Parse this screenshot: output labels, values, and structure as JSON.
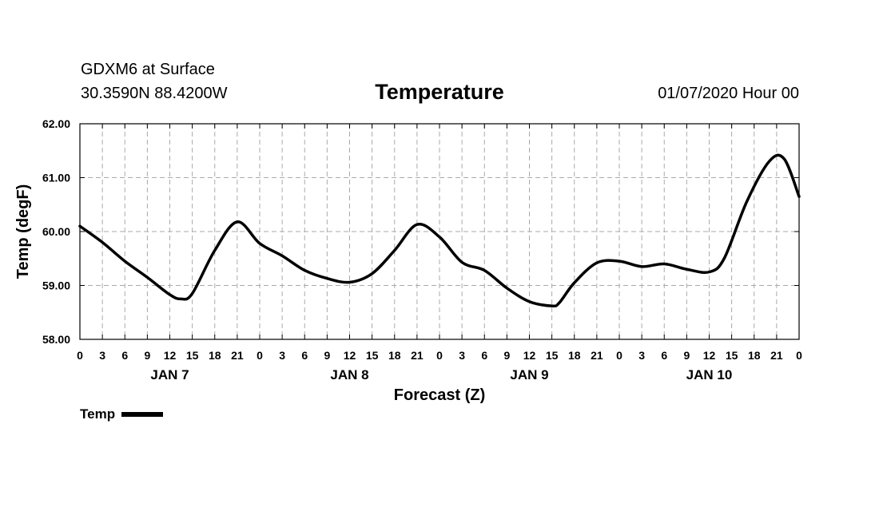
{
  "header": {
    "model": "GDXM6 at Surface",
    "location": "30.3590N 88.4200W",
    "title": "Temperature",
    "datetime": "01/07/2020 Hour 00"
  },
  "legend": {
    "label": "Temp"
  },
  "colors": {
    "line": "#000000",
    "grid": "#aaaaaa",
    "background": "#ffffff"
  },
  "chart_data": {
    "type": "line",
    "title": "Temperature",
    "xlabel": "Forecast (Z)",
    "ylabel": "Temp (degF)",
    "ylim": [
      58.0,
      62.0
    ],
    "y_ticks": [
      "58.00",
      "59.00",
      "60.00",
      "61.00",
      "62.00"
    ],
    "x_range_hours": [
      0,
      96
    ],
    "x_tick_labels": [
      "0",
      "3",
      "6",
      "9",
      "12",
      "15",
      "18",
      "21",
      "0",
      "3",
      "6",
      "9",
      "12",
      "15",
      "18",
      "21",
      "0",
      "3",
      "6",
      "9",
      "12",
      "15",
      "18",
      "21",
      "0",
      "3",
      "6",
      "9",
      "12",
      "15",
      "18",
      "21",
      "0"
    ],
    "day_labels": [
      {
        "label": "JAN 7",
        "hour": 12
      },
      {
        "label": "JAN 8",
        "hour": 36
      },
      {
        "label": "JAN 9",
        "hour": 60
      },
      {
        "label": "JAN 10",
        "hour": 84
      }
    ],
    "grid": true,
    "legend_position": "bottom-left",
    "series": [
      {
        "name": "Temp",
        "x": [
          0,
          3,
          6,
          9,
          12,
          13.5,
          15,
          18,
          21,
          24,
          27,
          30,
          33,
          36,
          39,
          42,
          45,
          48,
          51,
          54,
          57,
          60,
          63,
          64,
          66,
          69,
          72,
          75,
          78,
          81,
          84,
          86,
          89,
          92,
          94,
          96
        ],
        "values": [
          60.1,
          59.8,
          59.45,
          59.15,
          58.83,
          58.75,
          58.85,
          59.65,
          60.18,
          59.78,
          59.55,
          59.28,
          59.13,
          59.06,
          59.22,
          59.65,
          60.13,
          59.9,
          59.43,
          59.28,
          58.95,
          58.7,
          58.62,
          58.68,
          59.05,
          59.42,
          59.45,
          59.35,
          59.4,
          59.3,
          59.25,
          59.5,
          60.55,
          61.3,
          61.35,
          60.65
        ]
      }
    ]
  }
}
